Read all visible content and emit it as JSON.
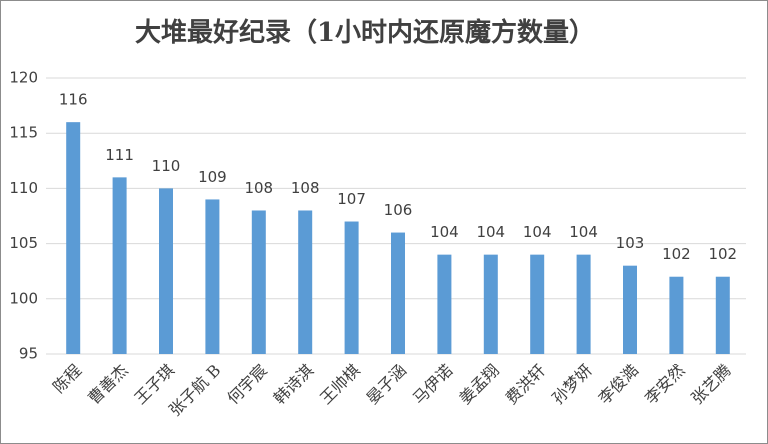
{
  "chart_data": {
    "type": "bar",
    "title": "大堆最好纪录（1小时内还原魔方数量）",
    "categories": [
      "陈程",
      "曹善杰",
      "王子琪",
      "张子航 B",
      "何宇宸",
      "韩诗淇",
      "王帅棋",
      "晏子涵",
      "马伊诺",
      "姜孟翔",
      "费洪轩",
      "孙梦妍",
      "李俊澔",
      "李安然",
      "张艺腾"
    ],
    "values": [
      116,
      111,
      110,
      109,
      108,
      108,
      107,
      106,
      104,
      104,
      104,
      104,
      103,
      102,
      102
    ],
    "color": "#5b9bd5",
    "ylim": [
      95,
      120
    ],
    "yticks": [
      95,
      100,
      105,
      110,
      115,
      120
    ],
    "grid": true
  }
}
